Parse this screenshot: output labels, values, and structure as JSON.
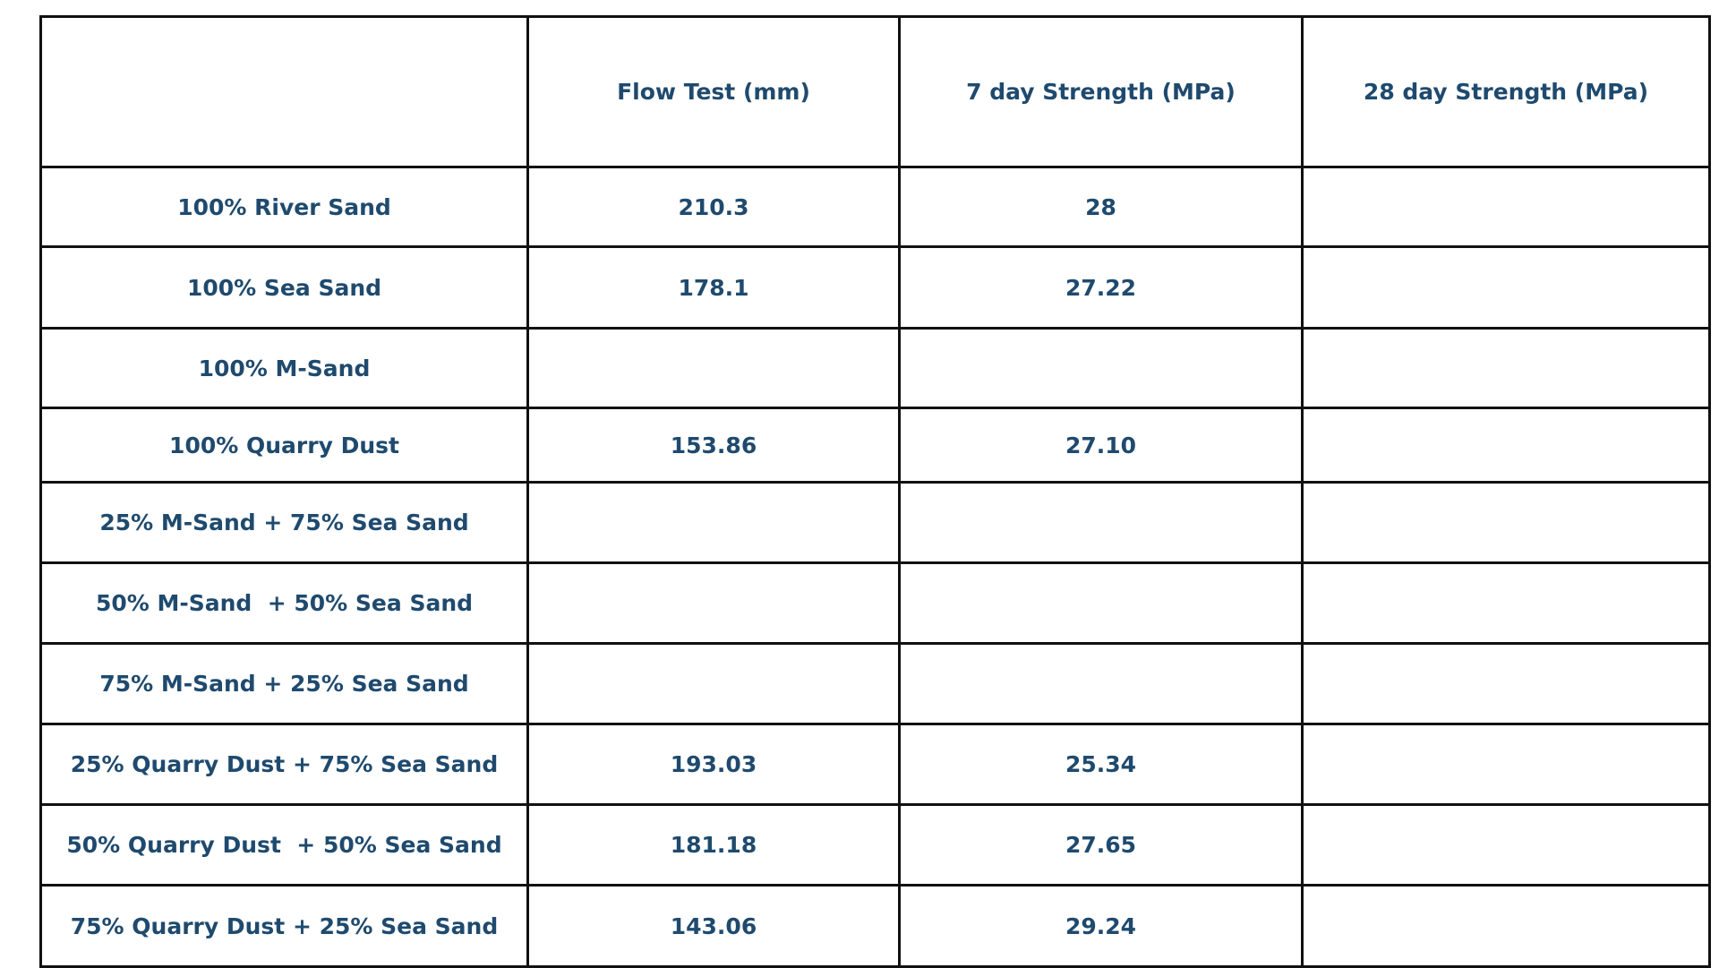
{
  "table": {
    "headers": [
      "",
      "Flow Test (mm)",
      "7 day Strength (MPa)",
      "28 day Strength (MPa)"
    ],
    "rows": [
      {
        "mix": "100% River Sand",
        "flow": "210.3",
        "strength7": "28",
        "strength28": ""
      },
      {
        "mix": "100% Sea Sand",
        "flow": "178.1",
        "strength7": "27.22",
        "strength28": ""
      },
      {
        "mix": "100% M-Sand",
        "flow": "",
        "strength7": "",
        "strength28": ""
      },
      {
        "mix": "100% Quarry Dust",
        "flow": "153.86",
        "strength7": "27.10",
        "strength28": ""
      },
      {
        "mix": "25% M-Sand + 75% Sea Sand",
        "flow": "",
        "strength7": "",
        "strength28": ""
      },
      {
        "mix": "50% M-Sand  + 50% Sea Sand",
        "flow": "",
        "strength7": "",
        "strength28": ""
      },
      {
        "mix": "75% M-Sand + 25% Sea Sand",
        "flow": "",
        "strength7": "",
        "strength28": ""
      },
      {
        "mix": "25% Quarry Dust + 75% Sea Sand",
        "flow": "193.03",
        "strength7": "25.34",
        "strength28": ""
      },
      {
        "mix": "50% Quarry Dust  + 50% Sea Sand",
        "flow": "181.18",
        "strength7": "27.65",
        "strength28": ""
      },
      {
        "mix": "75% Quarry Dust + 25% Sea Sand",
        "flow": "143.06",
        "strength7": "29.24",
        "strength28": ""
      }
    ]
  },
  "colors": {
    "text": "#1f4a6e",
    "border": "#111111",
    "background": "#ffffff"
  }
}
